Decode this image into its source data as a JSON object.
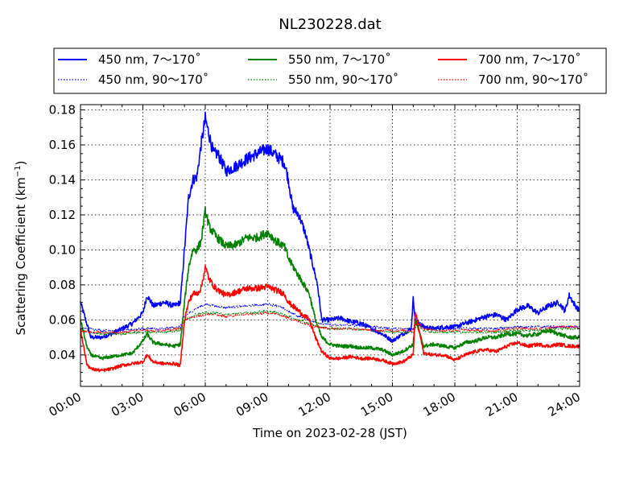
{
  "chart_data": {
    "type": "line",
    "title": "NL230228.dat",
    "xlabel": "Time on 2023-02-28 (JST)",
    "ylabel": "Scattering Coefficient (km",
    "ylabel_sup": "−1",
    "ylabel_end": ")",
    "xlim": [
      0,
      24
    ],
    "ylim": [
      0.022,
      0.183
    ],
    "x_ticks": [
      "00:00",
      "03:00",
      "06:00",
      "09:00",
      "12:00",
      "15:00",
      "18:00",
      "21:00",
      "24:00"
    ],
    "y_ticks": [
      "0.04",
      "0.06",
      "0.08",
      "0.10",
      "0.12",
      "0.14",
      "0.16",
      "0.18"
    ],
    "grid": true,
    "legend_placement": "top, above plot, 3 columns",
    "series": [
      {
        "name": "450 nm, 7～170˚",
        "color": "#0000ff",
        "style": "solid",
        "x": [
          0,
          0.5,
          1,
          1.5,
          2,
          2.5,
          3,
          3.2,
          3.5,
          4,
          4.5,
          4.8,
          5,
          5.2,
          5.4,
          5.6,
          5.8,
          6,
          6.2,
          6.4,
          6.6,
          7,
          7.5,
          8,
          8.5,
          9,
          9.4,
          9.8,
          10,
          10.2,
          10.5,
          10.8,
          11,
          11.2,
          11.4,
          11.6,
          12,
          12.5,
          13,
          13.5,
          14,
          14.5,
          15,
          15.5,
          15.9,
          16,
          16.1,
          16.5,
          17,
          17.5,
          18,
          18.5,
          19,
          19.5,
          20,
          20.5,
          21,
          21.5,
          22,
          22.5,
          23,
          23.3,
          23.5,
          23.8,
          24
        ],
        "y": [
          0.07,
          0.05,
          0.05,
          0.052,
          0.055,
          0.058,
          0.064,
          0.074,
          0.068,
          0.07,
          0.068,
          0.07,
          0.1,
          0.13,
          0.14,
          0.142,
          0.16,
          0.175,
          0.165,
          0.155,
          0.155,
          0.145,
          0.148,
          0.152,
          0.155,
          0.158,
          0.154,
          0.15,
          0.14,
          0.124,
          0.12,
          0.11,
          0.1,
          0.09,
          0.08,
          0.06,
          0.06,
          0.061,
          0.059,
          0.058,
          0.055,
          0.052,
          0.048,
          0.052,
          0.055,
          0.072,
          0.06,
          0.056,
          0.055,
          0.056,
          0.056,
          0.058,
          0.06,
          0.062,
          0.063,
          0.06,
          0.066,
          0.068,
          0.064,
          0.068,
          0.07,
          0.065,
          0.074,
          0.068,
          0.065
        ]
      },
      {
        "name": "450 nm, 90～170˚",
        "color": "#0000ff",
        "style": "dotted",
        "x": [
          0,
          0.5,
          1,
          2,
          3,
          4,
          4.8,
          5,
          5.5,
          6,
          6.5,
          7,
          8,
          9,
          9.5,
          10,
          10.5,
          11,
          11.5,
          12,
          13,
          14,
          15,
          15.5,
          16,
          16.2,
          16.5,
          17,
          18,
          19,
          20,
          21,
          22,
          23,
          24
        ],
        "y": [
          0.055,
          0.055,
          0.054,
          0.054,
          0.055,
          0.055,
          0.056,
          0.062,
          0.066,
          0.069,
          0.068,
          0.067,
          0.068,
          0.069,
          0.068,
          0.065,
          0.062,
          0.06,
          0.058,
          0.057,
          0.057,
          0.056,
          0.055,
          0.055,
          0.055,
          0.06,
          0.056,
          0.055,
          0.055,
          0.055,
          0.055,
          0.056,
          0.056,
          0.056,
          0.056
        ]
      },
      {
        "name": "550 nm, 7～170˚",
        "color": "#008000",
        "style": "solid",
        "x": [
          0,
          0.3,
          0.5,
          1,
          1.5,
          2,
          2.5,
          3,
          3.2,
          3.5,
          4,
          4.5,
          4.8,
          5,
          5.2,
          5.4,
          5.6,
          5.8,
          6,
          6.2,
          6.5,
          7,
          7.5,
          8,
          8.5,
          9,
          9.4,
          9.8,
          10,
          10.5,
          11,
          11.3,
          11.6,
          12,
          12.5,
          13,
          13.5,
          14,
          14.5,
          15,
          15.5,
          16,
          16.1,
          16.5,
          17,
          17.5,
          18,
          18.5,
          19,
          19.5,
          20,
          20.5,
          21,
          21.5,
          22,
          22.5,
          23,
          23.5,
          24
        ],
        "y": [
          0.06,
          0.045,
          0.04,
          0.038,
          0.039,
          0.04,
          0.041,
          0.048,
          0.052,
          0.047,
          0.046,
          0.045,
          0.046,
          0.07,
          0.09,
          0.1,
          0.1,
          0.105,
          0.122,
          0.113,
          0.108,
          0.102,
          0.103,
          0.107,
          0.107,
          0.11,
          0.105,
          0.102,
          0.095,
          0.085,
          0.075,
          0.06,
          0.05,
          0.046,
          0.045,
          0.045,
          0.044,
          0.044,
          0.043,
          0.04,
          0.042,
          0.046,
          0.06,
          0.045,
          0.046,
          0.045,
          0.044,
          0.047,
          0.048,
          0.05,
          0.05,
          0.052,
          0.052,
          0.051,
          0.052,
          0.054,
          0.052,
          0.05,
          0.05
        ]
      },
      {
        "name": "550 nm, 90～170˚",
        "color": "#008000",
        "style": "dotted",
        "x": [
          0,
          0.5,
          1,
          2,
          3,
          4,
          4.8,
          5,
          5.5,
          6,
          6.5,
          7,
          8,
          9,
          9.5,
          10,
          10.5,
          11,
          11.5,
          12,
          13,
          14,
          15,
          16,
          16.2,
          16.5,
          17,
          18,
          19,
          20,
          21,
          22,
          23,
          24
        ],
        "y": [
          0.054,
          0.053,
          0.052,
          0.052,
          0.053,
          0.053,
          0.054,
          0.06,
          0.063,
          0.064,
          0.064,
          0.063,
          0.064,
          0.065,
          0.064,
          0.062,
          0.06,
          0.058,
          0.056,
          0.055,
          0.055,
          0.054,
          0.053,
          0.053,
          0.058,
          0.054,
          0.053,
          0.053,
          0.053,
          0.053,
          0.054,
          0.054,
          0.055,
          0.055
        ]
      },
      {
        "name": "700 nm, 7～170˚",
        "color": "#ff0000",
        "style": "solid",
        "x": [
          0,
          0.3,
          0.5,
          1,
          1.5,
          2,
          2.5,
          3,
          3.2,
          3.5,
          4,
          4.5,
          4.8,
          5,
          5.2,
          5.4,
          5.6,
          5.8,
          6,
          6.2,
          6.5,
          7,
          7.5,
          8,
          8.5,
          9,
          9.4,
          9.8,
          10,
          10.5,
          11,
          11.3,
          11.6,
          12,
          12.5,
          13,
          13.5,
          14,
          14.5,
          15,
          15.5,
          16,
          16.1,
          16.5,
          17,
          17.5,
          18,
          18.5,
          19,
          19.5,
          20,
          20.5,
          21,
          21.5,
          22,
          22.5,
          23,
          23.5,
          24
        ],
        "y": [
          0.055,
          0.035,
          0.032,
          0.031,
          0.032,
          0.034,
          0.035,
          0.036,
          0.04,
          0.036,
          0.035,
          0.035,
          0.034,
          0.06,
          0.07,
          0.075,
          0.075,
          0.078,
          0.09,
          0.083,
          0.078,
          0.074,
          0.076,
          0.078,
          0.078,
          0.079,
          0.077,
          0.075,
          0.07,
          0.065,
          0.06,
          0.05,
          0.042,
          0.038,
          0.038,
          0.039,
          0.038,
          0.038,
          0.037,
          0.035,
          0.036,
          0.04,
          0.065,
          0.041,
          0.04,
          0.04,
          0.037,
          0.04,
          0.042,
          0.043,
          0.042,
          0.045,
          0.047,
          0.045,
          0.046,
          0.045,
          0.046,
          0.045,
          0.045
        ]
      },
      {
        "name": "700 nm, 90～170˚",
        "color": "#ff0000",
        "style": "dotted",
        "x": [
          0,
          0.5,
          1,
          2,
          3,
          4,
          4.8,
          5,
          5.5,
          6,
          6.5,
          7,
          8,
          9,
          9.5,
          10,
          10.5,
          11,
          11.5,
          12,
          13,
          14,
          15,
          16,
          16.2,
          16.5,
          17,
          18,
          19,
          20,
          21,
          22,
          23,
          24
        ],
        "y": [
          0.054,
          0.053,
          0.053,
          0.053,
          0.054,
          0.054,
          0.055,
          0.06,
          0.062,
          0.063,
          0.063,
          0.062,
          0.063,
          0.064,
          0.063,
          0.061,
          0.059,
          0.057,
          0.056,
          0.055,
          0.055,
          0.054,
          0.054,
          0.054,
          0.059,
          0.055,
          0.054,
          0.054,
          0.054,
          0.054,
          0.055,
          0.055,
          0.056,
          0.056
        ]
      }
    ]
  }
}
